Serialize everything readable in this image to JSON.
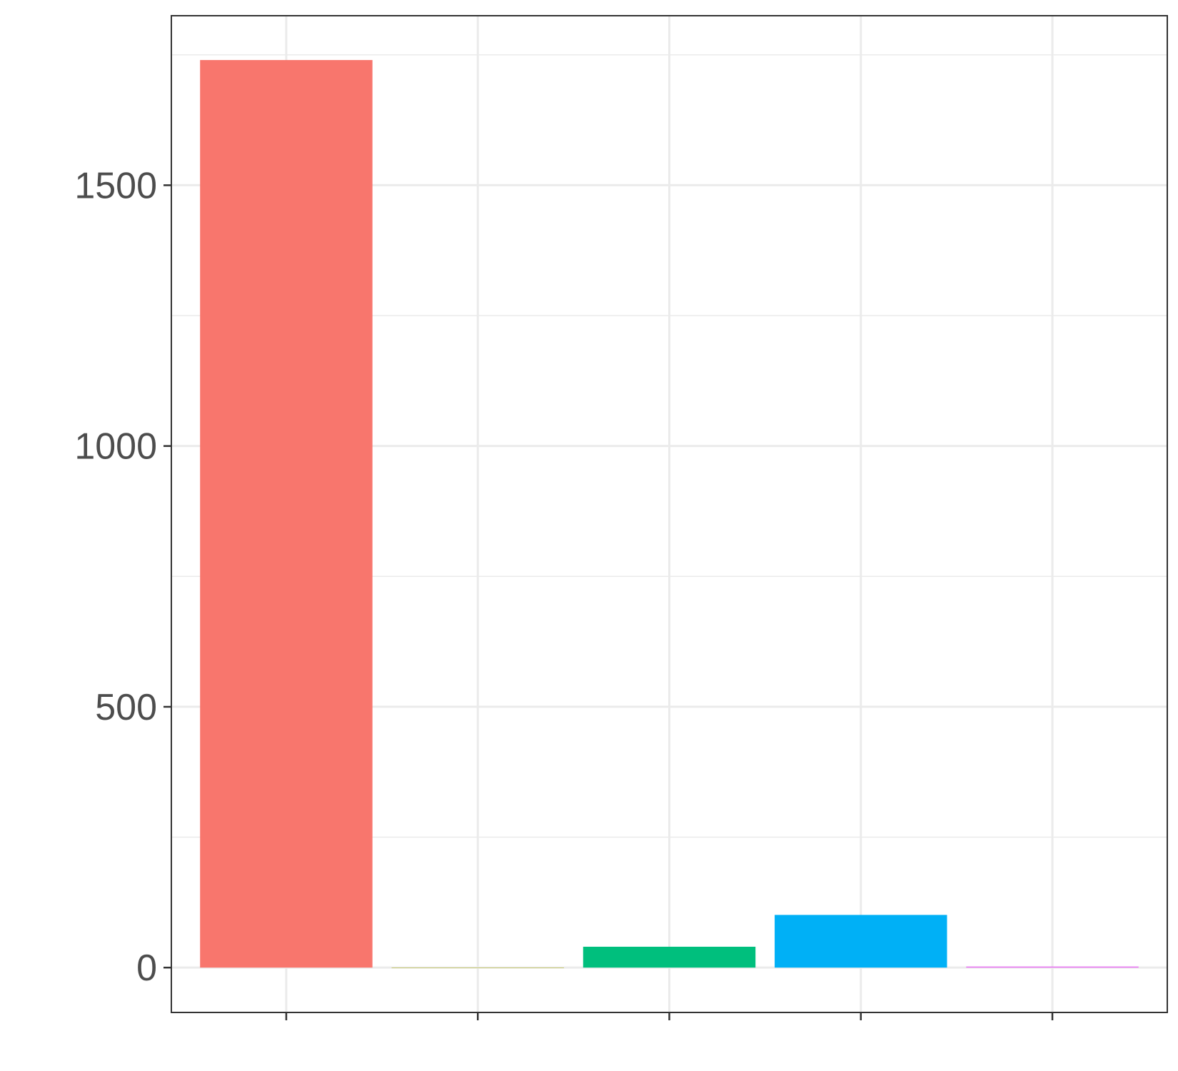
{
  "chart_data": {
    "type": "bar",
    "categories": [
      "",
      "",
      "",
      "",
      ""
    ],
    "values": [
      1740,
      0,
      40,
      101,
      2
    ],
    "colors": [
      "#F8766D",
      "#A3A500",
      "#00BF7D",
      "#00B0F6",
      "#E76BF3"
    ],
    "title": "",
    "xlabel": "",
    "ylabel": "",
    "ylim": [
      -86,
      1825
    ],
    "yticks": [
      0,
      500,
      1000,
      1500
    ],
    "ytick_labels": [
      "0",
      "500",
      "1000",
      "1500"
    ],
    "grid": true,
    "legend": "none"
  }
}
